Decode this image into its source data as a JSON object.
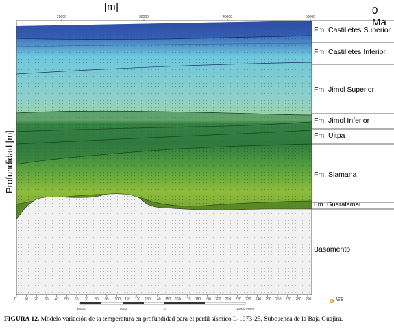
{
  "figure": {
    "x_unit_label": "[m]",
    "age_label": "0 Ma",
    "y_axis_label": "Profundidad [m]",
    "top_axis_ticks": [
      "20000",
      "30000",
      "40000",
      "50000"
    ],
    "formations": [
      "Fm. Castilletes Superior",
      "Fm. Castilletes Inferior",
      "Fm. Jimol Superior",
      "Fm. Jimol Inferior",
      "Fm. Uitpa",
      "Fm. Siamana",
      "Fm. Guaralamai",
      "Basamento"
    ],
    "bottom_axis_ticks": [
      "0",
      "10",
      "20",
      "30",
      "40",
      "50",
      "60",
      "70",
      "80",
      "90",
      "100",
      "110",
      "120",
      "130",
      "140",
      "150",
      "160",
      "170",
      "180",
      "190",
      "200",
      "210",
      "220",
      "230",
      "240",
      "250",
      "260",
      "270",
      "280",
      "290"
    ],
    "scale_bar_labels": [
      "10000",
      "5000",
      "0",
      "10000 meter"
    ],
    "logo_text": "IES",
    "colors": {
      "deep_blue": "#2e4ea6",
      "light_blue": "#6ec7dc",
      "green_yellow": "#8cbc3c",
      "dark_green": "#2f7a3e",
      "basement": "#f1f1f1"
    }
  },
  "caption": {
    "label": "FIGURA 12.",
    "text": " Modelo variación de la temperatura en profundidad para el perfil sísmico L-1973-25, Subcuenca de la Baja Guajira."
  }
}
